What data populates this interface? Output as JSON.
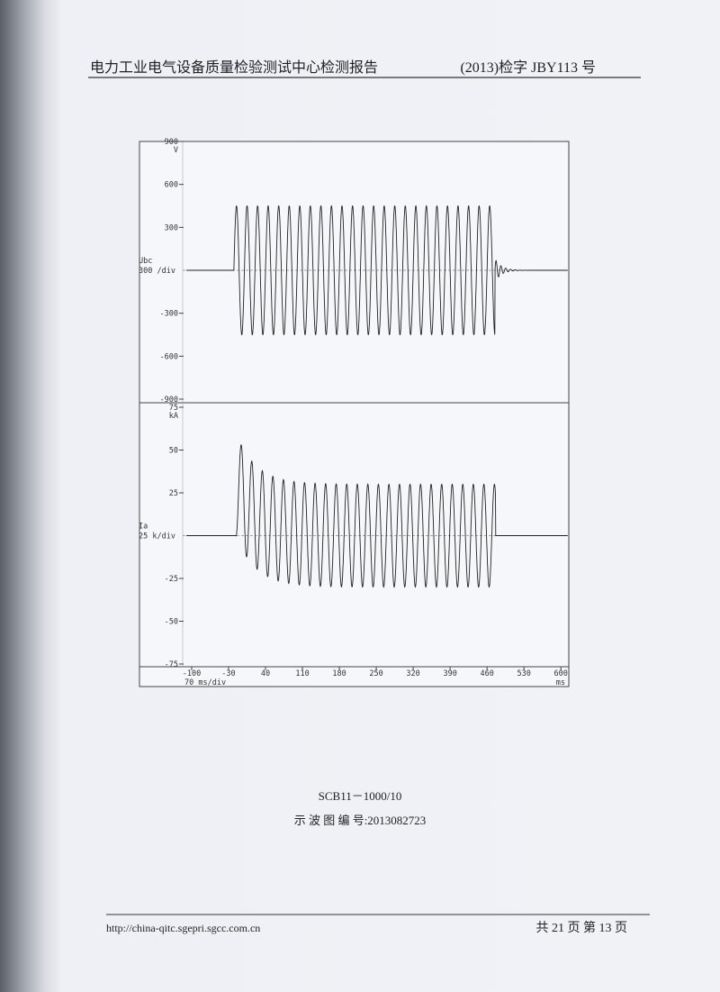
{
  "header": {
    "title": "电力工业电气设备质量检验测试中心检测报告",
    "report_no": "(2013)检字 JBY113 号"
  },
  "oscillogram": {
    "x_axis": {
      "xlim": [
        -117,
        615
      ],
      "xticks": [
        -100,
        -30,
        40,
        110,
        180,
        250,
        320,
        390,
        460,
        530,
        600
      ],
      "unit": "ms",
      "scale_label": "70 ms/div"
    },
    "panels": [
      {
        "signal": "Ubc",
        "scale_label": "300 /div",
        "unit": "V",
        "ylim": [
          -900,
          900
        ],
        "yticks": [
          900,
          600,
          300,
          -300,
          -600,
          -900
        ],
        "waveform": {
          "start": -20,
          "end": 475,
          "period": 20,
          "amplitude": 450
        }
      },
      {
        "signal": "Ia",
        "scale_label": "25 k/div",
        "unit": "kA",
        "ylim": [
          -75,
          75
        ],
        "yticks": [
          75,
          50,
          25,
          -25,
          -50,
          -75
        ],
        "waveform": {
          "start": -16,
          "end": 476,
          "period": 20,
          "amplitude": 30,
          "first_peak": 53
        }
      }
    ]
  },
  "caption": {
    "model": "SCB11－1000/10",
    "number": "示 波 图 编 号:2013082723"
  },
  "footer": {
    "url": "http://china-qitc.sgepri.sgcc.com.cn",
    "page": "共 21 页 第 13 页"
  }
}
